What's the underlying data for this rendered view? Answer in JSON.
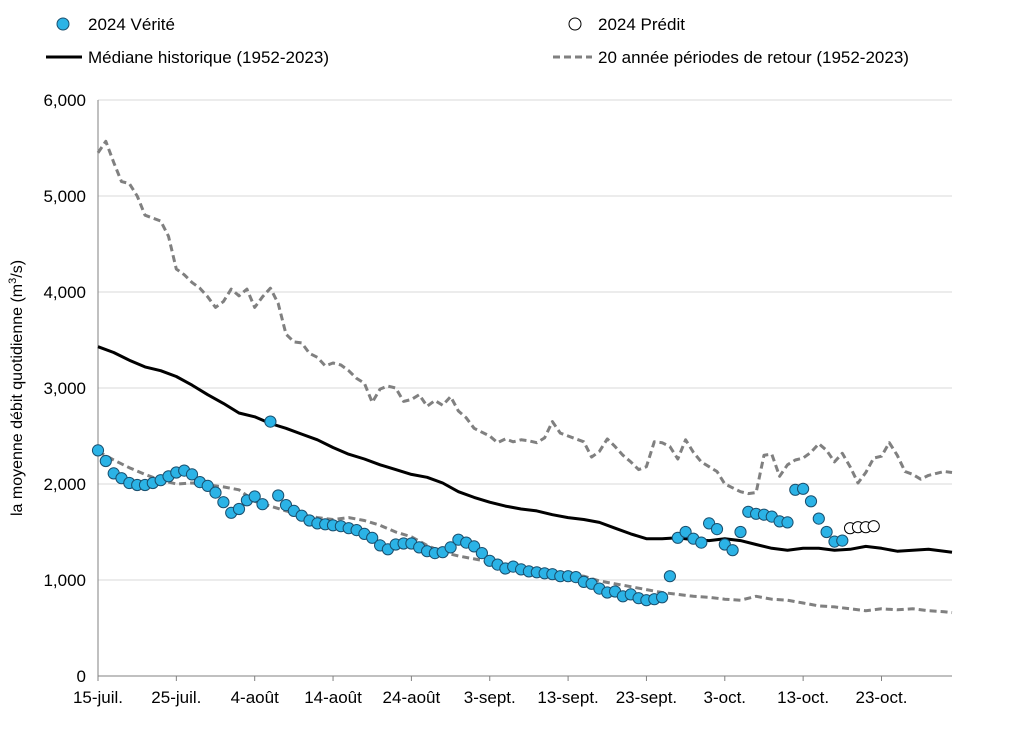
{
  "chart_data": {
    "type": "line",
    "ylabel_main": "la moyenne débit quotidienne (m",
    "ylabel_sup": "3",
    "ylabel_tail": "/s)",
    "ylim": [
      0,
      6000
    ],
    "y_ticks": [
      "0",
      "1,000",
      "2,000",
      "3,000",
      "4,000",
      "5,000",
      "6,000"
    ],
    "x_ticks": [
      "15-juil.",
      "25-juil.",
      "4-août",
      "14-août",
      "24-août",
      "3-sept.",
      "13-sept.",
      "23-sept.",
      "3-oct.",
      "13-oct.",
      "23-oct."
    ],
    "x_range_days": 109,
    "grid": "horizontal",
    "legend_position": "top",
    "colors": {
      "verite": "#2bb3e6",
      "median": "#000000",
      "return": "#808080",
      "predit_fill": "#ffffff"
    },
    "legend": {
      "verite": "2024 Vérité",
      "predit": "2024 Prédit",
      "median": "Médiane historique (1952-2023)",
      "return": "20 année périodes de retour (1952-2023)"
    },
    "series": [
      {
        "name": "2024 Vérité",
        "style": "markers",
        "x": [
          0,
          1,
          2,
          3,
          4,
          5,
          6,
          7,
          8,
          9,
          10,
          11,
          12,
          13,
          14,
          15,
          16,
          17,
          18,
          19,
          20,
          21,
          22,
          23,
          24,
          25,
          26,
          27,
          28,
          29,
          30,
          31,
          32,
          33,
          34,
          35,
          36,
          37,
          38,
          39,
          40,
          41,
          42,
          43,
          44,
          45,
          46,
          47,
          48,
          49,
          50,
          51,
          52,
          53,
          54,
          55,
          56,
          57,
          58,
          59,
          60,
          61,
          62,
          63,
          64,
          65,
          66,
          67,
          68,
          69,
          70,
          71,
          72,
          73,
          74,
          75,
          76,
          77,
          78,
          79,
          80,
          81,
          82,
          83,
          84,
          85,
          86,
          87,
          88,
          89,
          90,
          91,
          92,
          93,
          94,
          95
        ],
        "y": [
          2350,
          2240,
          2110,
          2060,
          2010,
          1990,
          1990,
          2010,
          2040,
          2080,
          2120,
          2140,
          2100,
          2020,
          1980,
          1910,
          1810,
          1700,
          1740,
          1830,
          1870,
          1790,
          2650,
          1880,
          1780,
          1720,
          1670,
          1620,
          1590,
          1580,
          1570,
          1560,
          1540,
          1520,
          1480,
          1440,
          1360,
          1320,
          1370,
          1380,
          1380,
          1340,
          1300,
          1280,
          1290,
          1340,
          1420,
          1390,
          1350,
          1280,
          1200,
          1160,
          1120,
          1140,
          1110,
          1090,
          1080,
          1070,
          1060,
          1040,
          1040,
          1030,
          980,
          960,
          910,
          870,
          880,
          830,
          850,
          810,
          790,
          800,
          820,
          1040,
          1440,
          1500,
          1430,
          1390,
          1590,
          1530,
          1370,
          1310,
          1500,
          1710,
          1690,
          1680,
          1660,
          1610,
          1600,
          1940,
          1950,
          1820,
          1640,
          1500,
          1400,
          1410
        ]
      },
      {
        "name": "2024 Prédit",
        "style": "markers-open",
        "x": [
          96,
          97,
          98,
          99
        ],
        "y": [
          1540,
          1550,
          1550,
          1560
        ]
      },
      {
        "name": "Médiane historique (1952-2023)",
        "style": "solid",
        "x": [
          0,
          2,
          4,
          6,
          8,
          10,
          12,
          14,
          16,
          18,
          20,
          22,
          24,
          26,
          28,
          30,
          32,
          34,
          36,
          38,
          40,
          42,
          44,
          46,
          48,
          50,
          52,
          54,
          56,
          58,
          60,
          62,
          64,
          66,
          68,
          70,
          72,
          74,
          76,
          78,
          80,
          82,
          84,
          86,
          88,
          90,
          92,
          94,
          96,
          98,
          100,
          102,
          104,
          106,
          108,
          109
        ],
        "y": [
          3430,
          3370,
          3290,
          3220,
          3180,
          3120,
          3030,
          2930,
          2840,
          2740,
          2700,
          2630,
          2580,
          2520,
          2460,
          2380,
          2310,
          2260,
          2200,
          2150,
          2100,
          2070,
          2010,
          1920,
          1860,
          1810,
          1770,
          1740,
          1720,
          1680,
          1650,
          1630,
          1600,
          1540,
          1480,
          1430,
          1430,
          1440,
          1420,
          1410,
          1430,
          1410,
          1370,
          1330,
          1310,
          1330,
          1330,
          1310,
          1320,
          1350,
          1330,
          1300,
          1310,
          1320,
          1300,
          1290
        ]
      },
      {
        "name": "20 année périodes de retour (1952-2023)",
        "style": "dashed",
        "x": [
          0,
          1,
          2,
          3,
          4,
          5,
          6,
          7,
          8,
          9,
          10,
          11,
          12,
          13,
          14,
          15,
          16,
          17,
          18,
          19,
          20,
          21,
          22,
          23,
          24,
          25,
          26,
          27,
          28,
          29,
          30,
          31,
          32,
          33,
          34,
          35,
          36,
          37,
          38,
          39,
          40,
          41,
          42,
          43,
          44,
          45,
          46,
          47,
          48,
          49,
          50,
          51,
          52,
          53,
          54,
          55,
          56,
          57,
          58,
          59,
          60,
          61,
          62,
          63,
          64,
          65,
          66,
          67,
          68,
          69,
          70,
          71,
          72,
          73,
          74,
          75,
          76,
          77,
          78,
          79,
          80,
          81,
          82,
          83,
          84,
          85,
          86,
          87,
          88,
          89,
          90,
          91,
          92,
          93,
          94,
          95,
          96,
          97,
          98,
          99,
          100,
          101,
          102,
          103,
          104,
          105,
          106,
          107,
          108,
          109
        ],
        "y": [
          5450,
          5570,
          5350,
          5150,
          5130,
          5000,
          4800,
          4770,
          4740,
          4580,
          4240,
          4180,
          4100,
          4040,
          3950,
          3840,
          3900,
          4030,
          3960,
          4030,
          3840,
          3950,
          4040,
          3880,
          3560,
          3480,
          3470,
          3360,
          3320,
          3230,
          3260,
          3240,
          3180,
          3100,
          3050,
          2850,
          2990,
          3020,
          3000,
          2860,
          2880,
          2930,
          2810,
          2870,
          2820,
          2910,
          2760,
          2690,
          2580,
          2540,
          2500,
          2430,
          2470,
          2440,
          2460,
          2450,
          2430,
          2480,
          2650,
          2530,
          2500,
          2470,
          2440,
          2280,
          2340,
          2470,
          2390,
          2300,
          2230,
          2150,
          2180,
          2440,
          2430,
          2390,
          2260,
          2460,
          2330,
          2230,
          2180,
          2130,
          2000,
          1960,
          1920,
          1900,
          1910,
          2300,
          2310,
          2080,
          2200,
          2250,
          2270,
          2330,
          2420,
          2350,
          2230,
          2320,
          2180,
          2010,
          2120,
          2270,
          2290,
          2430,
          2300,
          2130,
          2100,
          2050,
          2090,
          2110,
          2130,
          2120
        ]
      },
      {
        "name": "",
        "style": "dashed",
        "x": [
          0,
          2,
          4,
          6,
          8,
          10,
          12,
          14,
          16,
          18,
          20,
          22,
          24,
          26,
          28,
          30,
          32,
          34,
          36,
          38,
          40,
          42,
          44,
          46,
          48,
          50,
          52,
          54,
          56,
          58,
          60,
          62,
          64,
          66,
          68,
          70,
          72,
          74,
          76,
          78,
          80,
          82,
          84,
          86,
          88,
          90,
          92,
          94,
          96,
          98,
          100,
          102,
          104,
          106,
          108,
          109
        ],
        "y": [
          2340,
          2250,
          2170,
          2100,
          2040,
          2000,
          2010,
          1990,
          1970,
          1940,
          1820,
          1770,
          1720,
          1680,
          1650,
          1630,
          1650,
          1620,
          1570,
          1500,
          1450,
          1360,
          1290,
          1250,
          1220,
          1190,
          1160,
          1130,
          1100,
          1080,
          1060,
          1040,
          990,
          960,
          930,
          900,
          870,
          850,
          830,
          820,
          800,
          790,
          830,
          800,
          790,
          760,
          730,
          720,
          700,
          680,
          700,
          690,
          700,
          680,
          670,
          660
        ]
      }
    ]
  }
}
